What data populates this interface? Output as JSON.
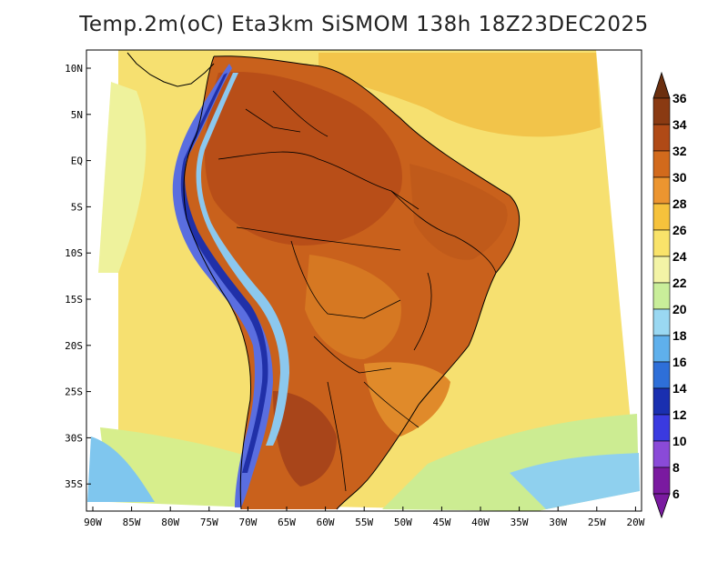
{
  "title": "Temp.2m(oC) Eta3km SiSMOM 138h 18Z23DEC2025",
  "map": {
    "lat_labels": [
      "10N",
      "5N",
      "EQ",
      "5S",
      "10S",
      "15S",
      "20S",
      "25S",
      "30S",
      "35S"
    ],
    "lon_labels": [
      "90W",
      "85W",
      "80W",
      "75W",
      "70W",
      "65W",
      "60W",
      "55W",
      "50W",
      "45W",
      "40W",
      "35W",
      "30W",
      "25W",
      "20W"
    ],
    "background_ocean": "#f5df6a",
    "land_hot": "#c8561c",
    "land_warm": "#e0781e"
  },
  "colorbar": {
    "labels": [
      "36",
      "34",
      "32",
      "30",
      "28",
      "26",
      "24",
      "22",
      "20",
      "18",
      "16",
      "14",
      "12",
      "10",
      "8",
      "6"
    ],
    "colors": [
      "#6b2f0f",
      "#8a3a12",
      "#b04a16",
      "#d26a1c",
      "#ec9530",
      "#f6c23c",
      "#f9e36a",
      "#f3f4a6",
      "#c9ee9a",
      "#9ad8f2",
      "#5fb0ec",
      "#2e6fd8",
      "#1a2fb0",
      "#3a3ae0",
      "#8a4ad8",
      "#7a1aa0"
    ]
  }
}
